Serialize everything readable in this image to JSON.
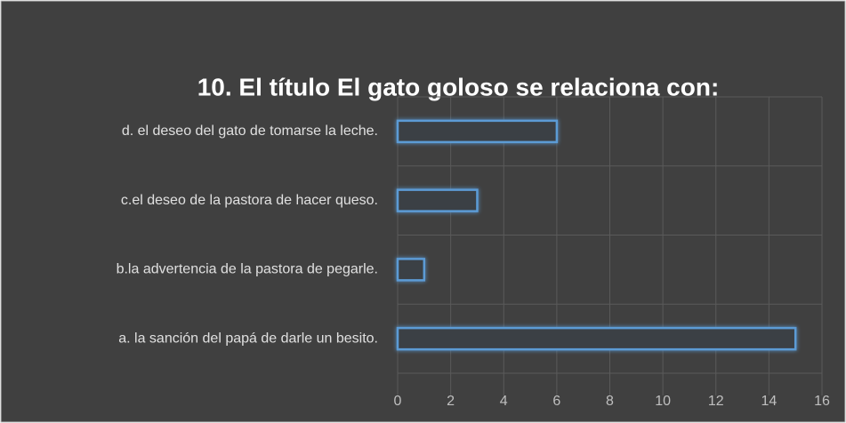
{
  "chart_data": {
    "type": "barh",
    "title": "10. El título El gato goloso se relaciona con:",
    "categories": [
      "a. la sanción del papá de darle un besito.",
      "b.la advertencia de la pastora de pegarle.",
      "c.el deseo de la pastora de hacer queso.",
      "d.  el deseo del gato de tomarse la leche."
    ],
    "values": [
      15,
      1,
      3,
      6
    ],
    "color": "#5b9bd5",
    "xlim": [
      0,
      16
    ],
    "xticks": [
      0,
      2,
      4,
      6,
      8,
      10,
      12,
      14,
      16
    ],
    "grid": true
  }
}
